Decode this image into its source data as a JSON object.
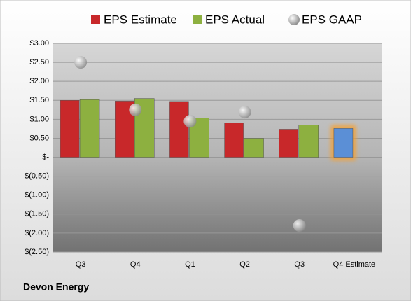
{
  "chart_data": {
    "type": "bar",
    "company": "Devon Energy",
    "categories": [
      "Q3",
      "Q4",
      "Q1",
      "Q2",
      "Q3",
      "Q4 Estimate"
    ],
    "series": [
      {
        "name": "EPS Estimate",
        "color": "#c8282a",
        "colors": [
          "#c8282a",
          "#c8282a",
          "#c8282a",
          "#c8282a",
          "#c8282a",
          "#5b8fd6"
        ],
        "values": [
          1.5,
          1.48,
          1.47,
          0.9,
          0.74,
          0.76
        ]
      },
      {
        "name": "EPS Actual",
        "color": "#8db040",
        "values": [
          1.52,
          1.55,
          1.03,
          0.5,
          0.85,
          null
        ]
      },
      {
        "name": "EPS GAAP",
        "color": "#a0a0a0",
        "marker": "circle",
        "values": [
          2.5,
          1.25,
          0.95,
          1.19,
          -1.8,
          null
        ]
      }
    ],
    "ylim": [
      -2.5,
      3.0
    ],
    "yticks": [
      {
        "value": 3.0,
        "label": "$3.00"
      },
      {
        "value": 2.5,
        "label": "$2.50"
      },
      {
        "value": 2.0,
        "label": "$2.00"
      },
      {
        "value": 1.5,
        "label": "$1.50"
      },
      {
        "value": 1.0,
        "label": "$1.00"
      },
      {
        "value": 0.5,
        "label": "$0.50"
      },
      {
        "value": 0,
        "label": "$-"
      },
      {
        "value": -0.5,
        "label": "$(0.50)"
      },
      {
        "value": -1.0,
        "label": "$(1.00)"
      },
      {
        "value": -1.5,
        "label": "$(1.50)"
      },
      {
        "value": -2.0,
        "label": "$(2.00)"
      },
      {
        "value": -2.5,
        "label": "$(2.50)"
      }
    ],
    "grid": true
  }
}
